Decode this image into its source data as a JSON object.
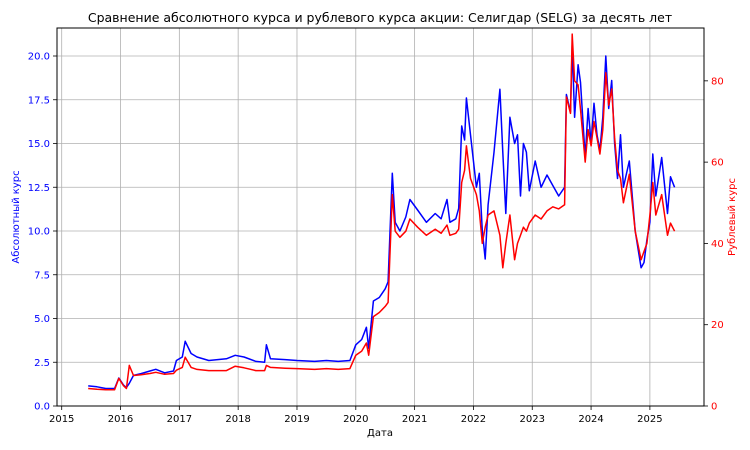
{
  "chart_data": {
    "type": "line",
    "title": "Сравнение абсолютного курса и рублевого курса акции: Селигдар (SELG) за десять лет",
    "xlabel": "Дата",
    "ylabel_left": "Абсолютный курс",
    "ylabel_right": "Рублевый курс",
    "grid": true,
    "colors": {
      "left_axis": "#0000ff",
      "right_axis": "#ff0000"
    },
    "x_range": [
      2014.92,
      2025.92
    ],
    "x_ticks": [
      "2015",
      "2016",
      "2017",
      "2018",
      "2019",
      "2020",
      "2021",
      "2022",
      "2023",
      "2024",
      "2025"
    ],
    "ylim_left": [
      0,
      21.6
    ],
    "yticks_left": [
      "0.0",
      "2.5",
      "5.0",
      "7.5",
      "10.0",
      "12.5",
      "15.0",
      "17.5",
      "20.0"
    ],
    "ylim_right": [
      0,
      93
    ],
    "yticks_right": [
      "0",
      "20",
      "40",
      "60",
      "80"
    ],
    "series": [
      {
        "axis": "left",
        "color": "#0000ff",
        "points": [
          [
            2015.45,
            1.15
          ],
          [
            2015.6,
            1.1
          ],
          [
            2015.75,
            1.0
          ],
          [
            2015.9,
            1.0
          ],
          [
            2015.97,
            1.6
          ],
          [
            2016.05,
            1.2
          ],
          [
            2016.1,
            1.05
          ],
          [
            2016.15,
            1.3
          ],
          [
            2016.22,
            1.75
          ],
          [
            2016.35,
            1.85
          ],
          [
            2016.5,
            2.0
          ],
          [
            2016.6,
            2.1
          ],
          [
            2016.75,
            1.9
          ],
          [
            2016.9,
            2.0
          ],
          [
            2016.95,
            2.6
          ],
          [
            2017.05,
            2.8
          ],
          [
            2017.1,
            3.7
          ],
          [
            2017.2,
            3.0
          ],
          [
            2017.3,
            2.8
          ],
          [
            2017.5,
            2.6
          ],
          [
            2017.8,
            2.7
          ],
          [
            2017.95,
            2.9
          ],
          [
            2018.1,
            2.8
          ],
          [
            2018.3,
            2.55
          ],
          [
            2018.45,
            2.5
          ],
          [
            2018.48,
            3.5
          ],
          [
            2018.55,
            2.7
          ],
          [
            2018.8,
            2.65
          ],
          [
            2019.0,
            2.6
          ],
          [
            2019.3,
            2.55
          ],
          [
            2019.5,
            2.6
          ],
          [
            2019.7,
            2.55
          ],
          [
            2019.9,
            2.6
          ],
          [
            2020.0,
            3.5
          ],
          [
            2020.1,
            3.8
          ],
          [
            2020.18,
            4.5
          ],
          [
            2020.22,
            3.3
          ],
          [
            2020.3,
            6.0
          ],
          [
            2020.4,
            6.2
          ],
          [
            2020.5,
            6.7
          ],
          [
            2020.55,
            7.1
          ],
          [
            2020.58,
            9.8
          ],
          [
            2020.62,
            13.3
          ],
          [
            2020.67,
            10.5
          ],
          [
            2020.75,
            10.0
          ],
          [
            2020.85,
            10.8
          ],
          [
            2020.92,
            11.8
          ],
          [
            2021.05,
            11.2
          ],
          [
            2021.2,
            10.5
          ],
          [
            2021.35,
            11.0
          ],
          [
            2021.45,
            10.7
          ],
          [
            2021.55,
            11.8
          ],
          [
            2021.6,
            10.5
          ],
          [
            2021.7,
            10.7
          ],
          [
            2021.75,
            11.3
          ],
          [
            2021.8,
            16.0
          ],
          [
            2021.85,
            15.2
          ],
          [
            2021.88,
            17.6
          ],
          [
            2021.95,
            15.5
          ],
          [
            2022.05,
            12.5
          ],
          [
            2022.1,
            13.3
          ],
          [
            2022.15,
            10.0
          ],
          [
            2022.2,
            8.4
          ],
          [
            2022.25,
            11.5
          ],
          [
            2022.35,
            14.5
          ],
          [
            2022.45,
            18.1
          ],
          [
            2022.5,
            14.5
          ],
          [
            2022.55,
            11.0
          ],
          [
            2022.62,
            16.5
          ],
          [
            2022.7,
            15.0
          ],
          [
            2022.75,
            15.5
          ],
          [
            2022.8,
            12.0
          ],
          [
            2022.85,
            15.0
          ],
          [
            2022.9,
            14.5
          ],
          [
            2022.95,
            12.3
          ],
          [
            2023.05,
            14.0
          ],
          [
            2023.15,
            12.5
          ],
          [
            2023.25,
            13.2
          ],
          [
            2023.35,
            12.6
          ],
          [
            2023.45,
            12.0
          ],
          [
            2023.55,
            12.5
          ],
          [
            2023.58,
            17.8
          ],
          [
            2023.65,
            16.8
          ],
          [
            2023.68,
            20.6
          ],
          [
            2023.72,
            16.5
          ],
          [
            2023.78,
            19.5
          ],
          [
            2023.82,
            18.5
          ],
          [
            2023.9,
            14.2
          ],
          [
            2023.95,
            17.0
          ],
          [
            2024.0,
            15.0
          ],
          [
            2024.05,
            17.3
          ],
          [
            2024.1,
            15.5
          ],
          [
            2024.15,
            14.6
          ],
          [
            2024.2,
            16.5
          ],
          [
            2024.25,
            20.0
          ],
          [
            2024.3,
            17.0
          ],
          [
            2024.35,
            18.6
          ],
          [
            2024.4,
            15.0
          ],
          [
            2024.45,
            13.0
          ],
          [
            2024.5,
            15.5
          ],
          [
            2024.55,
            12.5
          ],
          [
            2024.65,
            14.0
          ],
          [
            2024.75,
            10.0
          ],
          [
            2024.85,
            7.9
          ],
          [
            2024.9,
            8.2
          ],
          [
            2024.95,
            9.5
          ],
          [
            2025.0,
            10.5
          ],
          [
            2025.05,
            14.4
          ],
          [
            2025.1,
            12.0
          ],
          [
            2025.2,
            14.2
          ],
          [
            2025.3,
            11.0
          ],
          [
            2025.35,
            13.1
          ],
          [
            2025.42,
            12.5
          ]
        ]
      },
      {
        "axis": "right",
        "color": "#ff0000",
        "points": [
          [
            2015.45,
            4.3
          ],
          [
            2015.6,
            4.1
          ],
          [
            2015.75,
            4.0
          ],
          [
            2015.9,
            4.0
          ],
          [
            2015.97,
            6.8
          ],
          [
            2016.05,
            5.0
          ],
          [
            2016.1,
            4.3
          ],
          [
            2016.15,
            10.0
          ],
          [
            2016.22,
            7.5
          ],
          [
            2016.35,
            7.7
          ],
          [
            2016.5,
            8.0
          ],
          [
            2016.6,
            8.3
          ],
          [
            2016.75,
            7.8
          ],
          [
            2016.9,
            8.0
          ],
          [
            2016.95,
            8.8
          ],
          [
            2017.05,
            9.5
          ],
          [
            2017.1,
            12.0
          ],
          [
            2017.2,
            9.5
          ],
          [
            2017.3,
            9.0
          ],
          [
            2017.5,
            8.7
          ],
          [
            2017.8,
            8.7
          ],
          [
            2017.95,
            9.8
          ],
          [
            2018.1,
            9.4
          ],
          [
            2018.3,
            8.7
          ],
          [
            2018.45,
            8.7
          ],
          [
            2018.48,
            10.0
          ],
          [
            2018.55,
            9.5
          ],
          [
            2018.8,
            9.3
          ],
          [
            2019.0,
            9.2
          ],
          [
            2019.3,
            9.0
          ],
          [
            2019.5,
            9.2
          ],
          [
            2019.7,
            9.0
          ],
          [
            2019.9,
            9.2
          ],
          [
            2020.0,
            12.5
          ],
          [
            2020.1,
            13.5
          ],
          [
            2020.18,
            15.5
          ],
          [
            2020.22,
            12.5
          ],
          [
            2020.3,
            22.0
          ],
          [
            2020.4,
            23.0
          ],
          [
            2020.5,
            24.5
          ],
          [
            2020.55,
            25.5
          ],
          [
            2020.58,
            37.0
          ],
          [
            2020.62,
            52.0
          ],
          [
            2020.67,
            43.0
          ],
          [
            2020.75,
            41.5
          ],
          [
            2020.85,
            43.0
          ],
          [
            2020.92,
            46.0
          ],
          [
            2021.05,
            44.0
          ],
          [
            2021.2,
            42.0
          ],
          [
            2021.35,
            43.5
          ],
          [
            2021.45,
            42.5
          ],
          [
            2021.55,
            44.5
          ],
          [
            2021.6,
            42.0
          ],
          [
            2021.7,
            42.5
          ],
          [
            2021.75,
            43.5
          ],
          [
            2021.8,
            55.0
          ],
          [
            2021.85,
            58.0
          ],
          [
            2021.88,
            64.0
          ],
          [
            2021.95,
            56.0
          ],
          [
            2022.05,
            52.0
          ],
          [
            2022.1,
            48.0
          ],
          [
            2022.15,
            40.0
          ],
          [
            2022.2,
            44.0
          ],
          [
            2022.25,
            47.0
          ],
          [
            2022.35,
            48.0
          ],
          [
            2022.45,
            42.0
          ],
          [
            2022.5,
            34.0
          ],
          [
            2022.55,
            40.0
          ],
          [
            2022.62,
            47.0
          ],
          [
            2022.7,
            36.0
          ],
          [
            2022.75,
            40.0
          ],
          [
            2022.8,
            42.0
          ],
          [
            2022.85,
            44.0
          ],
          [
            2022.9,
            43.0
          ],
          [
            2022.95,
            45.0
          ],
          [
            2023.05,
            47.0
          ],
          [
            2023.15,
            46.0
          ],
          [
            2023.25,
            48.0
          ],
          [
            2023.35,
            49.0
          ],
          [
            2023.45,
            48.5
          ],
          [
            2023.55,
            49.5
          ],
          [
            2023.58,
            76.0
          ],
          [
            2023.65,
            72.0
          ],
          [
            2023.68,
            91.5
          ],
          [
            2023.72,
            80.0
          ],
          [
            2023.78,
            79.0
          ],
          [
            2023.82,
            73.0
          ],
          [
            2023.9,
            60.0
          ],
          [
            2023.95,
            68.0
          ],
          [
            2024.0,
            64.0
          ],
          [
            2024.05,
            70.0
          ],
          [
            2024.1,
            66.0
          ],
          [
            2024.15,
            62.0
          ],
          [
            2024.2,
            68.0
          ],
          [
            2024.25,
            82.0
          ],
          [
            2024.3,
            74.0
          ],
          [
            2024.35,
            78.0
          ],
          [
            2024.4,
            66.0
          ],
          [
            2024.45,
            58.0
          ],
          [
            2024.5,
            56.0
          ],
          [
            2024.55,
            50.0
          ],
          [
            2024.65,
            57.0
          ],
          [
            2024.75,
            43.0
          ],
          [
            2024.85,
            36.0
          ],
          [
            2024.9,
            38.0
          ],
          [
            2024.95,
            40.0
          ],
          [
            2025.0,
            47.0
          ],
          [
            2025.05,
            55.0
          ],
          [
            2025.1,
            47.0
          ],
          [
            2025.2,
            52.0
          ],
          [
            2025.3,
            42.0
          ],
          [
            2025.35,
            45.0
          ],
          [
            2025.42,
            43.0
          ]
        ]
      }
    ]
  }
}
